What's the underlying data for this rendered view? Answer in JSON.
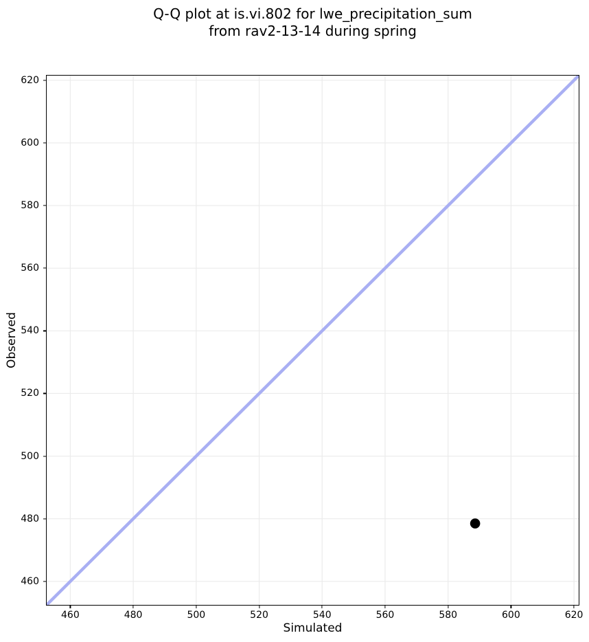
{
  "chart_data": {
    "type": "scatter",
    "title_lines": [
      "Q-Q plot at is.vi.802 for lwe_precipitation_sum",
      "from rav2-13-14 during spring"
    ],
    "title": "Q-Q plot at is.vi.802 for lwe_precipitation_sum from rav2-13-14 during spring",
    "xlabel": "Simulated",
    "ylabel": "Observed",
    "xlim": [
      452.5,
      621.5
    ],
    "ylim": [
      452.5,
      621.5
    ],
    "xticks": [
      460,
      480,
      500,
      520,
      540,
      560,
      580,
      600,
      620
    ],
    "yticks": [
      460,
      480,
      500,
      520,
      540,
      560,
      580,
      600,
      620
    ],
    "grid": true,
    "legend": false,
    "points": [
      {
        "x": 588.6,
        "y": 478.5
      }
    ],
    "identity_line": {
      "x1": 452.5,
      "y1": 452.5,
      "x2": 621.5,
      "y2": 621.5
    },
    "styles": {
      "marker_color": "#000000",
      "marker_radius": 7.3,
      "line_color": "#a9aff3",
      "line_width": 4.5,
      "grid_color": "#ebebeb",
      "spine_color": "#000000",
      "text_color": "#000000",
      "background": "#ffffff"
    }
  }
}
